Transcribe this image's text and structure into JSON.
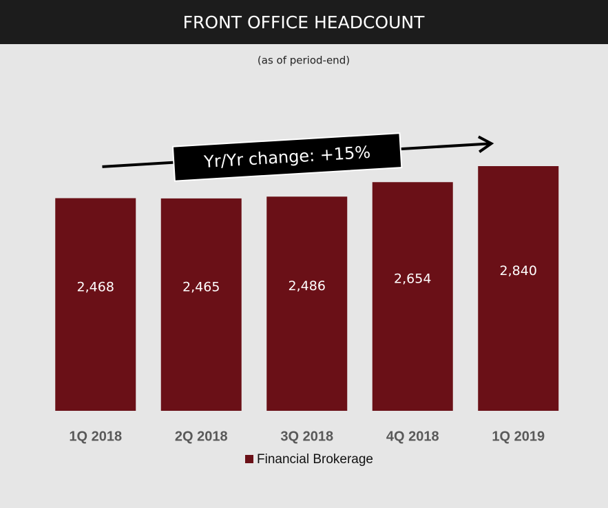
{
  "chart_data": {
    "type": "bar",
    "title": "FRONT OFFICE HEADCOUNT",
    "subtitle": "(as of period-end)",
    "annotation": "Yr/Yr change: +15%",
    "categories": [
      "1Q 2018",
      "2Q 2018",
      "3Q 2018",
      "4Q 2018",
      "1Q 2019"
    ],
    "series": [
      {
        "name": "Financial Brokerage",
        "color": "#6a1017",
        "values": [
          2468,
          2465,
          2486,
          2654,
          2840
        ],
        "value_labels": [
          "2,468",
          "2,465",
          "2,486",
          "2,654",
          "2,840"
        ]
      }
    ],
    "legend": "bottom"
  }
}
